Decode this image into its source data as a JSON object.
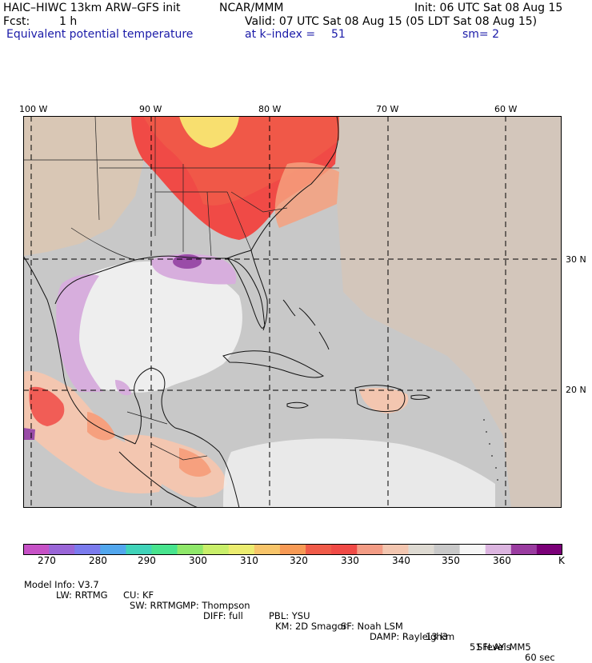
{
  "header": {
    "model": "HAIC–HIWC 13km ARW–GFS init",
    "institution": "NCAR/MMM",
    "init": "Init: 06 UTC Sat 08 Aug 15",
    "fcst_label": "Fcst:",
    "fcst_value": "1 h",
    "valid": "Valid: 07 UTC Sat 08 Aug 15 (05 LDT Sat 08 Aug 15)",
    "field": "Equivalent potential temperature",
    "level": "at k–index =",
    "level_value": "51",
    "smoothing": "sm= 2"
  },
  "map": {
    "lon_labels": [
      "100 W",
      "90 W",
      "80 W",
      "70 W",
      "60 W"
    ],
    "lat_labels": [
      "30 N",
      "20 N"
    ],
    "colors": {
      "background_gray": "#c8c8c8",
      "land_tan": "#d9c7b5",
      "ocean_tan": "#d3c6bb",
      "gulf_white": "#eeeeee",
      "violet": "#d7aedd",
      "purple": "#9a4ca8",
      "hot_red": "#f04a46",
      "orange": "#f6a07e",
      "salmon": "#f3c6b0",
      "yellow": "#f8df6f"
    }
  },
  "colorbar": {
    "unit": "K",
    "labels": [
      "270",
      "280",
      "290",
      "300",
      "310",
      "320",
      "330",
      "340",
      "350",
      "360"
    ],
    "colors": [
      "#c651c6",
      "#9a66d8",
      "#7b7bee",
      "#52a7ee",
      "#40d3b9",
      "#48e48e",
      "#8fe86a",
      "#c9ef6a",
      "#eced70",
      "#f8c56a",
      "#f79a55",
      "#f05b49",
      "#f04a46",
      "#f39c85",
      "#f3c6b0",
      "#dedad2",
      "#c9c9c9",
      "#f6f6f6",
      "#dcb5e0",
      "#9a3ca0",
      "#7b0078"
    ]
  },
  "footer": {
    "line1": [
      "Model Info: V3.7",
      "CU: KF",
      "MP: Thompson",
      "PBL: YSU",
      "SF: Noah LSM",
      "13 km",
      "51 levels",
      "60 sec"
    ],
    "line2": [
      "LW: RRTMG",
      "SW: RRTMG",
      "DIFF: full",
      "KM: 2D Smagor",
      "DAMP: Rayleigh3",
      "SFLAY: MM5"
    ]
  }
}
